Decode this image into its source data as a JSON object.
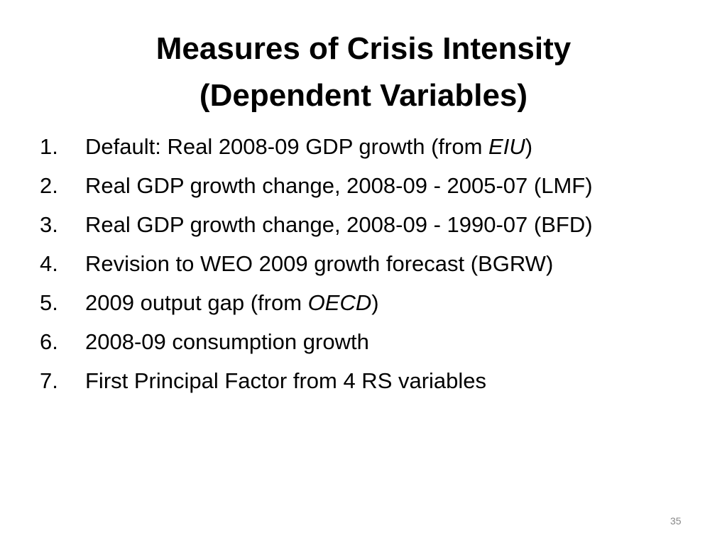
{
  "title": [
    "Measures of Crisis Intensity",
    "(Dependent Variables)"
  ],
  "items": [
    {
      "marker": "1.",
      "parts": [
        {
          "text": "Default: Real 2008-09 GDP growth (from ",
          "italic": false
        },
        {
          "text": "EIU",
          "italic": true
        },
        {
          "text": ")",
          "italic": false
        }
      ]
    },
    {
      "marker": "2.",
      "parts": [
        {
          "text": "Real GDP growth change, 2008-09 - 2005-07 (LMF)",
          "italic": false
        }
      ]
    },
    {
      "marker": "3.",
      "parts": [
        {
          "text": "Real GDP growth change, 2008-09 - 1990-07 (BFD)",
          "italic": false
        }
      ]
    },
    {
      "marker": "4.",
      "parts": [
        {
          "text": "Revision to WEO 2009 growth forecast (BGRW)",
          "italic": false
        }
      ]
    },
    {
      "marker": "5.",
      "parts": [
        {
          "text": "2009 output gap (from ",
          "italic": false
        },
        {
          "text": "OECD",
          "italic": true
        },
        {
          "text": ")",
          "italic": false
        }
      ]
    },
    {
      "marker": "6.",
      "parts": [
        {
          "text": "2008-09 consumption growth",
          "italic": false
        }
      ]
    },
    {
      "marker": "7.",
      "parts": [
        {
          "text": "First Principal Factor from 4 RS variables",
          "italic": false
        }
      ]
    }
  ],
  "page_number": "35"
}
